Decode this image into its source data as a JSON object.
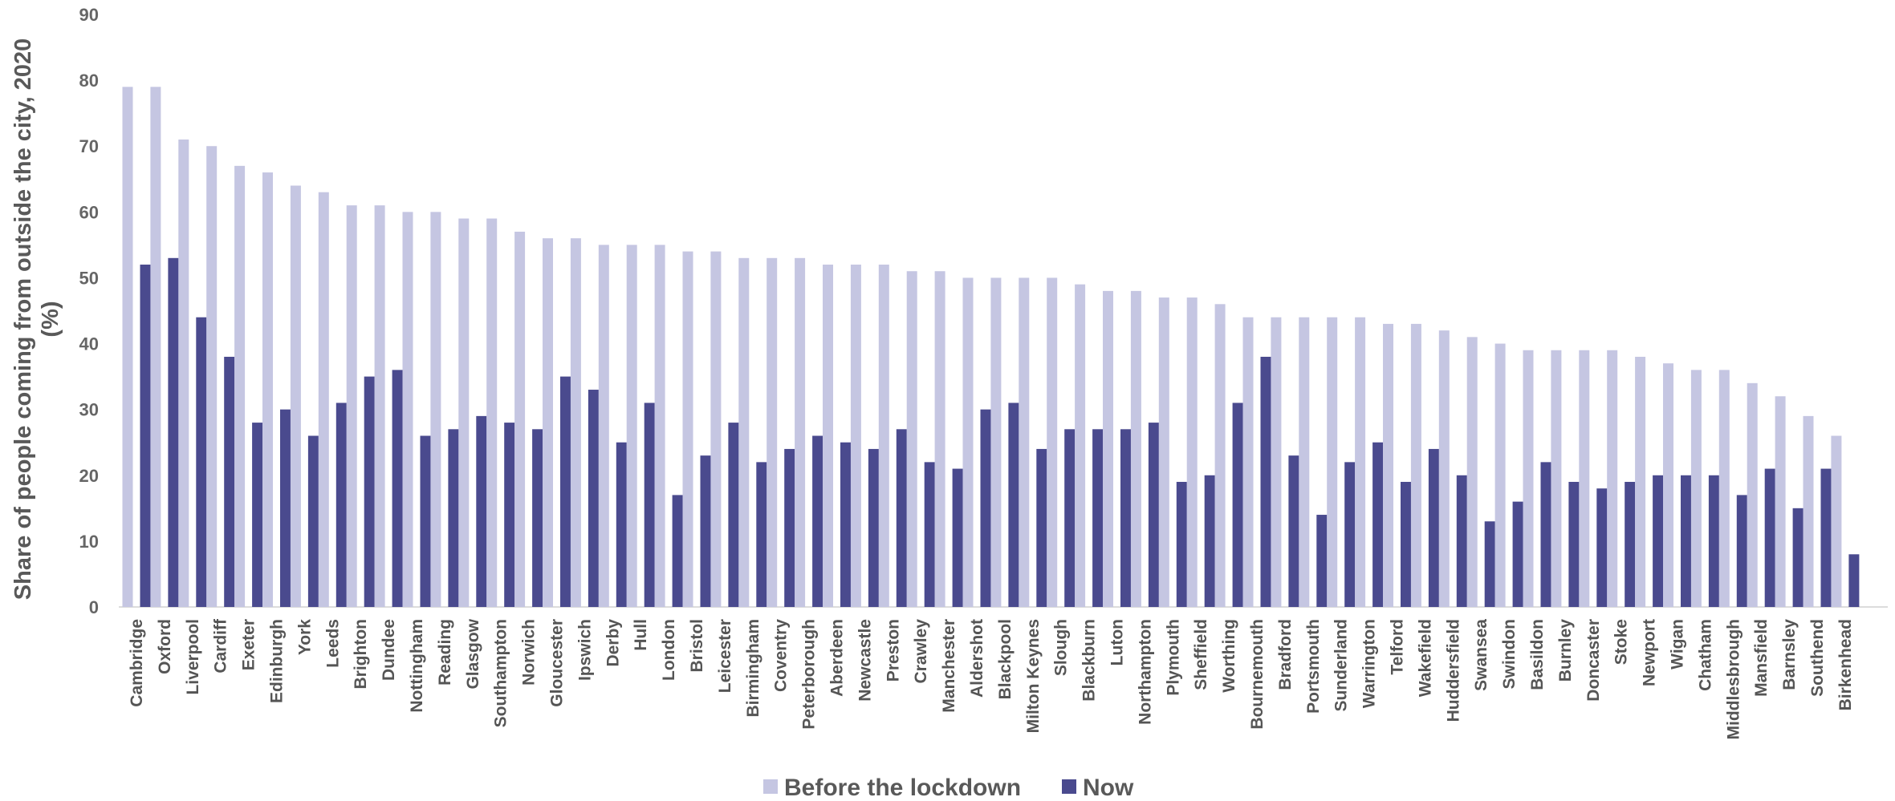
{
  "chart_data": {
    "type": "bar",
    "title": "",
    "xlabel": "",
    "ylabel": "Share of people coming from outside the city, 2020 (%)",
    "ylabel_lines": [
      "Share of people coming from outside the city, 2020",
      "(%)"
    ],
    "ylim": [
      0,
      90
    ],
    "yticks": [
      0,
      10,
      20,
      30,
      40,
      50,
      60,
      70,
      80,
      90
    ],
    "grid": false,
    "legend_position": "bottom",
    "categories": [
      "Cambridge",
      "Oxford",
      "Liverpool",
      "Cardiff",
      "Exeter",
      "Edinburgh",
      "York",
      "Leeds",
      "Brighton",
      "Dundee",
      "Nottingham",
      "Reading",
      "Glasgow",
      "Southampton",
      "Norwich",
      "Gloucester",
      "Ipswich",
      "Derby",
      "Hull",
      "London",
      "Bristol",
      "Leicester",
      "Birmingham",
      "Coventry",
      "Peterborough",
      "Aberdeen",
      "Newcastle",
      "Preston",
      "Crawley",
      "Manchester",
      "Aldershot",
      "Blackpool",
      "Milton Keynes",
      "Slough",
      "Blackburn",
      "Luton",
      "Northampton",
      "Plymouth",
      "Sheffield",
      "Worthing",
      "Bournemouth",
      "Bradford",
      "Portsmouth",
      "Sunderland",
      "Warrington",
      "Telford",
      "Wakefield",
      "Huddersfield",
      "Swansea",
      "Swindon",
      "Basildon",
      "Burnley",
      "Doncaster",
      "Stoke",
      "Newport",
      "Wigan",
      "Chatham",
      "Middlesbrough",
      "Mansfield",
      "Barnsley",
      "Southend",
      "Birkenhead"
    ],
    "series": [
      {
        "name": "Before the lockdown",
        "color": "#c5c6e2",
        "values": [
          79,
          79,
          71,
          70,
          67,
          66,
          64,
          63,
          61,
          61,
          60,
          60,
          59,
          59,
          57,
          56,
          56,
          55,
          55,
          55,
          54,
          54,
          53,
          53,
          53,
          52,
          52,
          52,
          51,
          51,
          50,
          50,
          50,
          50,
          49,
          48,
          48,
          47,
          47,
          46,
          44,
          44,
          44,
          44,
          44,
          43,
          43,
          42,
          41,
          40,
          39,
          39,
          39,
          39,
          38,
          37,
          36,
          36,
          34,
          32,
          29,
          26
        ]
      },
      {
        "name": "Now",
        "color": "#4a4a8e",
        "values": [
          52,
          53,
          44,
          38,
          28,
          30,
          26,
          31,
          35,
          36,
          26,
          27,
          29,
          28,
          27,
          35,
          33,
          25,
          31,
          17,
          23,
          28,
          22,
          24,
          26,
          25,
          24,
          27,
          22,
          21,
          30,
          31,
          24,
          27,
          27,
          27,
          28,
          19,
          20,
          31,
          38,
          23,
          14,
          22,
          25,
          19,
          24,
          20,
          13,
          16,
          22,
          19,
          18,
          19,
          20,
          20,
          20,
          17,
          21,
          15,
          21,
          8
        ]
      }
    ]
  }
}
